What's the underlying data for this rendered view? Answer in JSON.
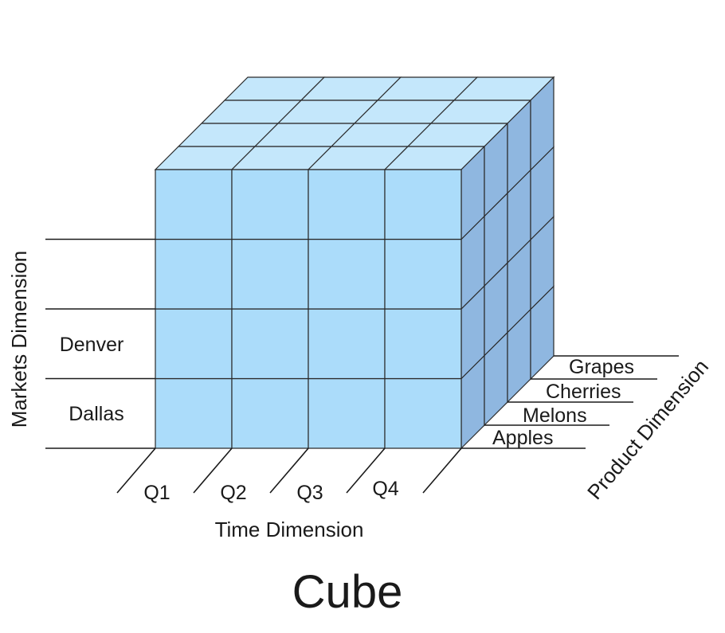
{
  "title": "Cube",
  "dimensions": {
    "markets": {
      "title": "Markets Dimension",
      "members": [
        "Dallas",
        "Denver",
        "",
        ""
      ]
    },
    "time": {
      "title": "Time Dimension",
      "members": [
        "Q1",
        "Q2",
        "Q3",
        "Q4"
      ]
    },
    "product": {
      "title": "Product Dimension",
      "members": [
        "Apples",
        "Melons",
        "Cherries",
        "Grapes"
      ]
    }
  },
  "colors": {
    "front_face": "#abdcfa",
    "top_face": "#c4e7fb",
    "side_face": "#8fb7e0",
    "grid_line": "#2a2a2a"
  }
}
